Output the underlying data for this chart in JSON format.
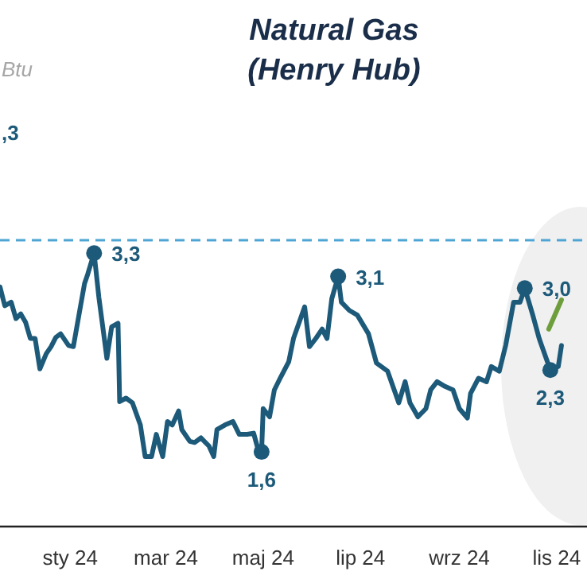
{
  "chart_data": {
    "type": "line",
    "title": "Natural Gas\n(Henry Hub)",
    "annotations": [
      "Btu",
      ",3"
    ],
    "xlim": [
      "2023-11-18",
      "2024-11-20"
    ],
    "xticks": [
      {
        "value": "2024-01-01",
        "label": "sty 24"
      },
      {
        "value": "2024-03-01",
        "label": "mar 24"
      },
      {
        "value": "2024-05-01",
        "label": "maj 24"
      },
      {
        "value": "2024-07-01",
        "label": "lip 24"
      },
      {
        "value": "2024-09-01",
        "label": "wrz 24"
      },
      {
        "value": "2024-11-01",
        "label": "lis 24"
      }
    ],
    "tick_labels": "x",
    "ref_lines": [
      {
        "axis": "y",
        "value": 3.41,
        "color": "#4ea5d4",
        "line_style": "dashed"
      }
    ],
    "series": [
      {
        "color": "#1d5a7a",
        "x": [
          "2023-11-18",
          "2023-11-21",
          "2023-11-25",
          "2023-11-28",
          "2023-12-01",
          "2023-12-04",
          "2023-12-07",
          "2023-12-10",
          "2023-12-13",
          "2023-12-17",
          "2023-12-20",
          "2023-12-23",
          "2023-12-26",
          "2023-12-31",
          "2024-01-03",
          "2024-01-07",
          "2024-01-10",
          "2024-01-12",
          "2024-01-16",
          "2024-01-19",
          "2024-01-22",
          "2024-01-24",
          "2024-01-27",
          "2024-01-31",
          "2024-02-01",
          "2024-02-05",
          "2024-02-09",
          "2024-02-14",
          "2024-02-17",
          "2024-02-21",
          "2024-02-24",
          "2024-02-28",
          "2024-03-02",
          "2024-03-05",
          "2024-03-09",
          "2024-03-11",
          "2024-03-16",
          "2024-03-19",
          "2024-03-23",
          "2024-03-28",
          "2024-03-31",
          "2024-04-02",
          "2024-04-07",
          "2024-04-12",
          "2024-04-16",
          "2024-04-21",
          "2024-04-25",
          "2024-04-28",
          "2024-04-30",
          "2024-05-01",
          "2024-05-05",
          "2024-05-08",
          "2024-05-12",
          "2024-05-17",
          "2024-05-20",
          "2024-05-27",
          "2024-05-30",
          "2024-06-03",
          "2024-06-07",
          "2024-06-10",
          "2024-06-13",
          "2024-06-17",
          "2024-06-19",
          "2024-06-24",
          "2024-06-29",
          "2024-07-06",
          "2024-07-11",
          "2024-07-18",
          "2024-07-25",
          "2024-07-29",
          "2024-08-01",
          "2024-08-06",
          "2024-08-11",
          "2024-08-14",
          "2024-08-18",
          "2024-08-23",
          "2024-08-28",
          "2024-09-01",
          "2024-09-06",
          "2024-09-08",
          "2024-09-13",
          "2024-09-18",
          "2024-09-21",
          "2024-09-26",
          "2024-09-30",
          "2024-10-05",
          "2024-10-09",
          "2024-10-12",
          "2024-10-17",
          "2024-10-21",
          "2024-10-28",
          "2024-11-02",
          "2024-11-04"
        ],
        "values": [
          3.01,
          2.85,
          2.88,
          2.74,
          2.78,
          2.71,
          2.57,
          2.57,
          2.31,
          2.44,
          2.5,
          2.58,
          2.61,
          2.51,
          2.5,
          2.81,
          3.04,
          3.12,
          3.3,
          2.92,
          2.61,
          2.4,
          2.67,
          2.7,
          2.03,
          2.06,
          2.02,
          1.83,
          1.56,
          1.56,
          1.75,
          1.56,
          1.86,
          1.83,
          1.95,
          1.79,
          1.69,
          1.68,
          1.72,
          1.65,
          1.56,
          1.79,
          1.83,
          1.86,
          1.75,
          1.75,
          1.76,
          1.61,
          1.6,
          1.97,
          1.9,
          2.13,
          2.24,
          2.37,
          2.57,
          2.84,
          2.5,
          2.57,
          2.65,
          2.57,
          2.91,
          3.1,
          2.88,
          2.81,
          2.77,
          2.61,
          2.36,
          2.29,
          2.02,
          2.2,
          2.02,
          1.9,
          1.97,
          2.13,
          2.2,
          2.16,
          2.13,
          1.97,
          1.89,
          2.1,
          2.23,
          2.2,
          2.33,
          2.29,
          2.51,
          2.88,
          2.88,
          3.0,
          2.77,
          2.57,
          2.3,
          2.33,
          2.51
        ],
        "value_labels": [
          null,
          null,
          null,
          null,
          null,
          null,
          null,
          null,
          null,
          null,
          null,
          null,
          null,
          null,
          null,
          null,
          null,
          null,
          "3,3",
          null,
          null,
          null,
          null,
          null,
          null,
          null,
          null,
          null,
          null,
          null,
          null,
          null,
          null,
          null,
          null,
          null,
          null,
          null,
          null,
          null,
          null,
          null,
          null,
          null,
          null,
          null,
          null,
          null,
          "1,6",
          null,
          null,
          null,
          null,
          null,
          null,
          null,
          null,
          null,
          null,
          null,
          null,
          "3,1",
          null,
          null,
          null,
          null,
          null,
          null,
          null,
          null,
          null,
          null,
          null,
          null,
          null,
          null,
          null,
          null,
          null,
          null,
          null,
          null,
          null,
          null,
          null,
          null,
          null,
          "3,0",
          null,
          null,
          "2,3",
          null,
          null
        ]
      },
      {
        "color": "#6e9e3c",
        "x": [
          "2024-10-27",
          "2024-11-04"
        ],
        "values": [
          2.65,
          2.9
        ]
      }
    ]
  }
}
